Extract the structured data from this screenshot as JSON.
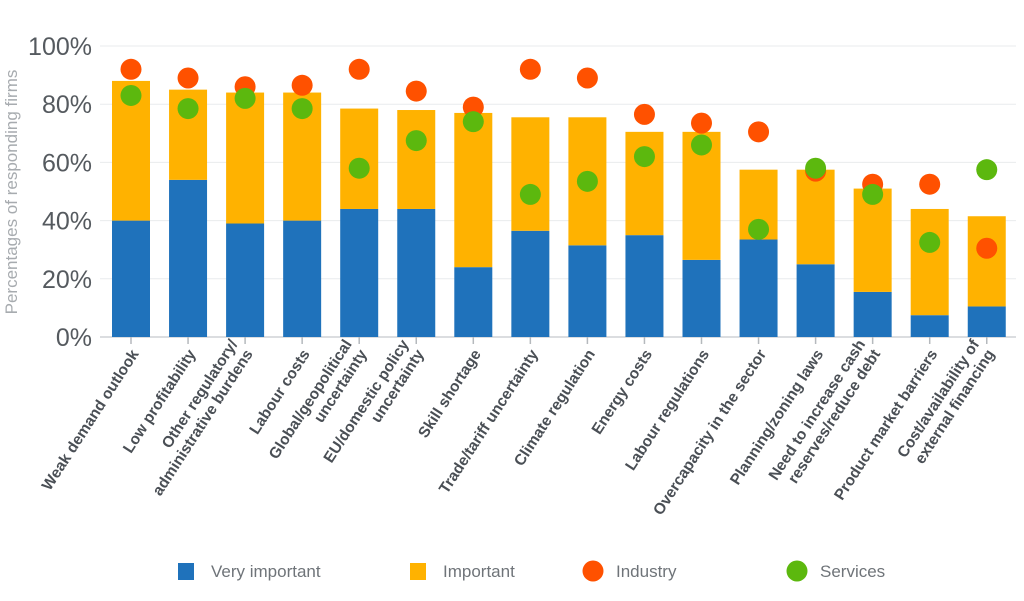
{
  "chart_data": {
    "type": "bar",
    "subtype": "stacked-bar-with-dots",
    "title": "",
    "xlabel": "",
    "ylabel": "Percentages of responding firms",
    "ylim": [
      0,
      100
    ],
    "yticks": [
      "0%",
      "20%",
      "40%",
      "60%",
      "80%",
      "100%"
    ],
    "ytick_values": [
      0,
      20,
      40,
      60,
      80,
      100
    ],
    "grid": true,
    "legend_position": "bottom",
    "categories": [
      [
        "Weak demand outlook"
      ],
      [
        "Low profitability"
      ],
      [
        "Other regulatory/",
        "administrative burdens"
      ],
      [
        "Labour costs"
      ],
      [
        "Global/geopolitical",
        "uncertainty"
      ],
      [
        "EU/domestic policy",
        "uncertainty"
      ],
      [
        "Skill shortage"
      ],
      [
        "Trade/tariff uncertainty"
      ],
      [
        "Climate regulation"
      ],
      [
        "Energy costs"
      ],
      [
        "Labour regulations"
      ],
      [
        "Overcapacity in the sector"
      ],
      [
        "Planning/zoning laws"
      ],
      [
        "Need to increase cash",
        "reserves/reduce debt"
      ],
      [
        "Product market barriers"
      ],
      [
        "Cost/availability of",
        "external financing"
      ]
    ],
    "series": [
      {
        "name": "Very important",
        "kind": "bar",
        "color": "#1f72bb",
        "values": [
          40,
          54,
          39,
          40,
          44,
          44,
          24,
          36.5,
          31.5,
          35,
          26.5,
          33.5,
          25,
          15.5,
          7.5,
          10.5
        ]
      },
      {
        "name": "Important",
        "kind": "bar",
        "color": "#ffb200",
        "values": [
          48,
          31,
          45,
          44,
          34.5,
          34,
          53,
          39,
          44,
          35.5,
          44,
          24,
          32.5,
          35.5,
          36.5,
          31
        ]
      },
      {
        "name": "Industry",
        "kind": "dot",
        "color": "#ff5100",
        "values": [
          92,
          89,
          86,
          86.5,
          92,
          84.5,
          79,
          92,
          89,
          76.5,
          73.5,
          70.5,
          57,
          52.5,
          52.5,
          30.5
        ]
      },
      {
        "name": "Services",
        "kind": "dot",
        "color": "#5cb80e",
        "values": [
          83,
          78.5,
          82,
          78.5,
          58,
          67.5,
          74,
          49,
          53.5,
          62,
          66,
          37,
          58,
          49,
          32.5,
          57.5
        ]
      }
    ]
  },
  "legend": [
    {
      "label": "Very important",
      "shape": "square",
      "color": "#1f72bb"
    },
    {
      "label": "Important",
      "shape": "square",
      "color": "#ffb200"
    },
    {
      "label": "Industry",
      "shape": "circle",
      "color": "#ff5100"
    },
    {
      "label": "Services",
      "shape": "circle",
      "color": "#5cb80e"
    }
  ]
}
